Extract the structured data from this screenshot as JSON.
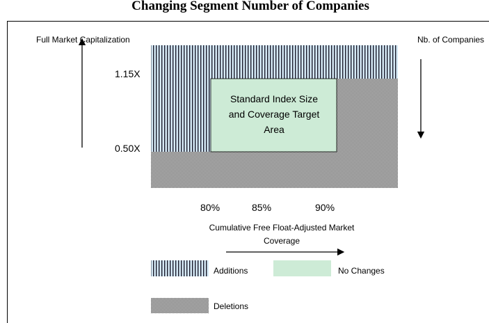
{
  "title": "Changing Segment Number of Companies",
  "axis_labels": {
    "left": "Full Market Capitalization",
    "right": "Nb. of Companies"
  },
  "levels": [
    "1.15X",
    "0.50X"
  ],
  "coverage": [
    "80%",
    "85%",
    "90%"
  ],
  "x_axis_label": [
    "Cumulative Free Float-Adjusted Market",
    "Coverage"
  ],
  "target_area": [
    "Standard Index Size",
    "and Coverage Target",
    "Area"
  ],
  "legend": [
    "Additions",
    "No Changes",
    "Deletions"
  ]
}
